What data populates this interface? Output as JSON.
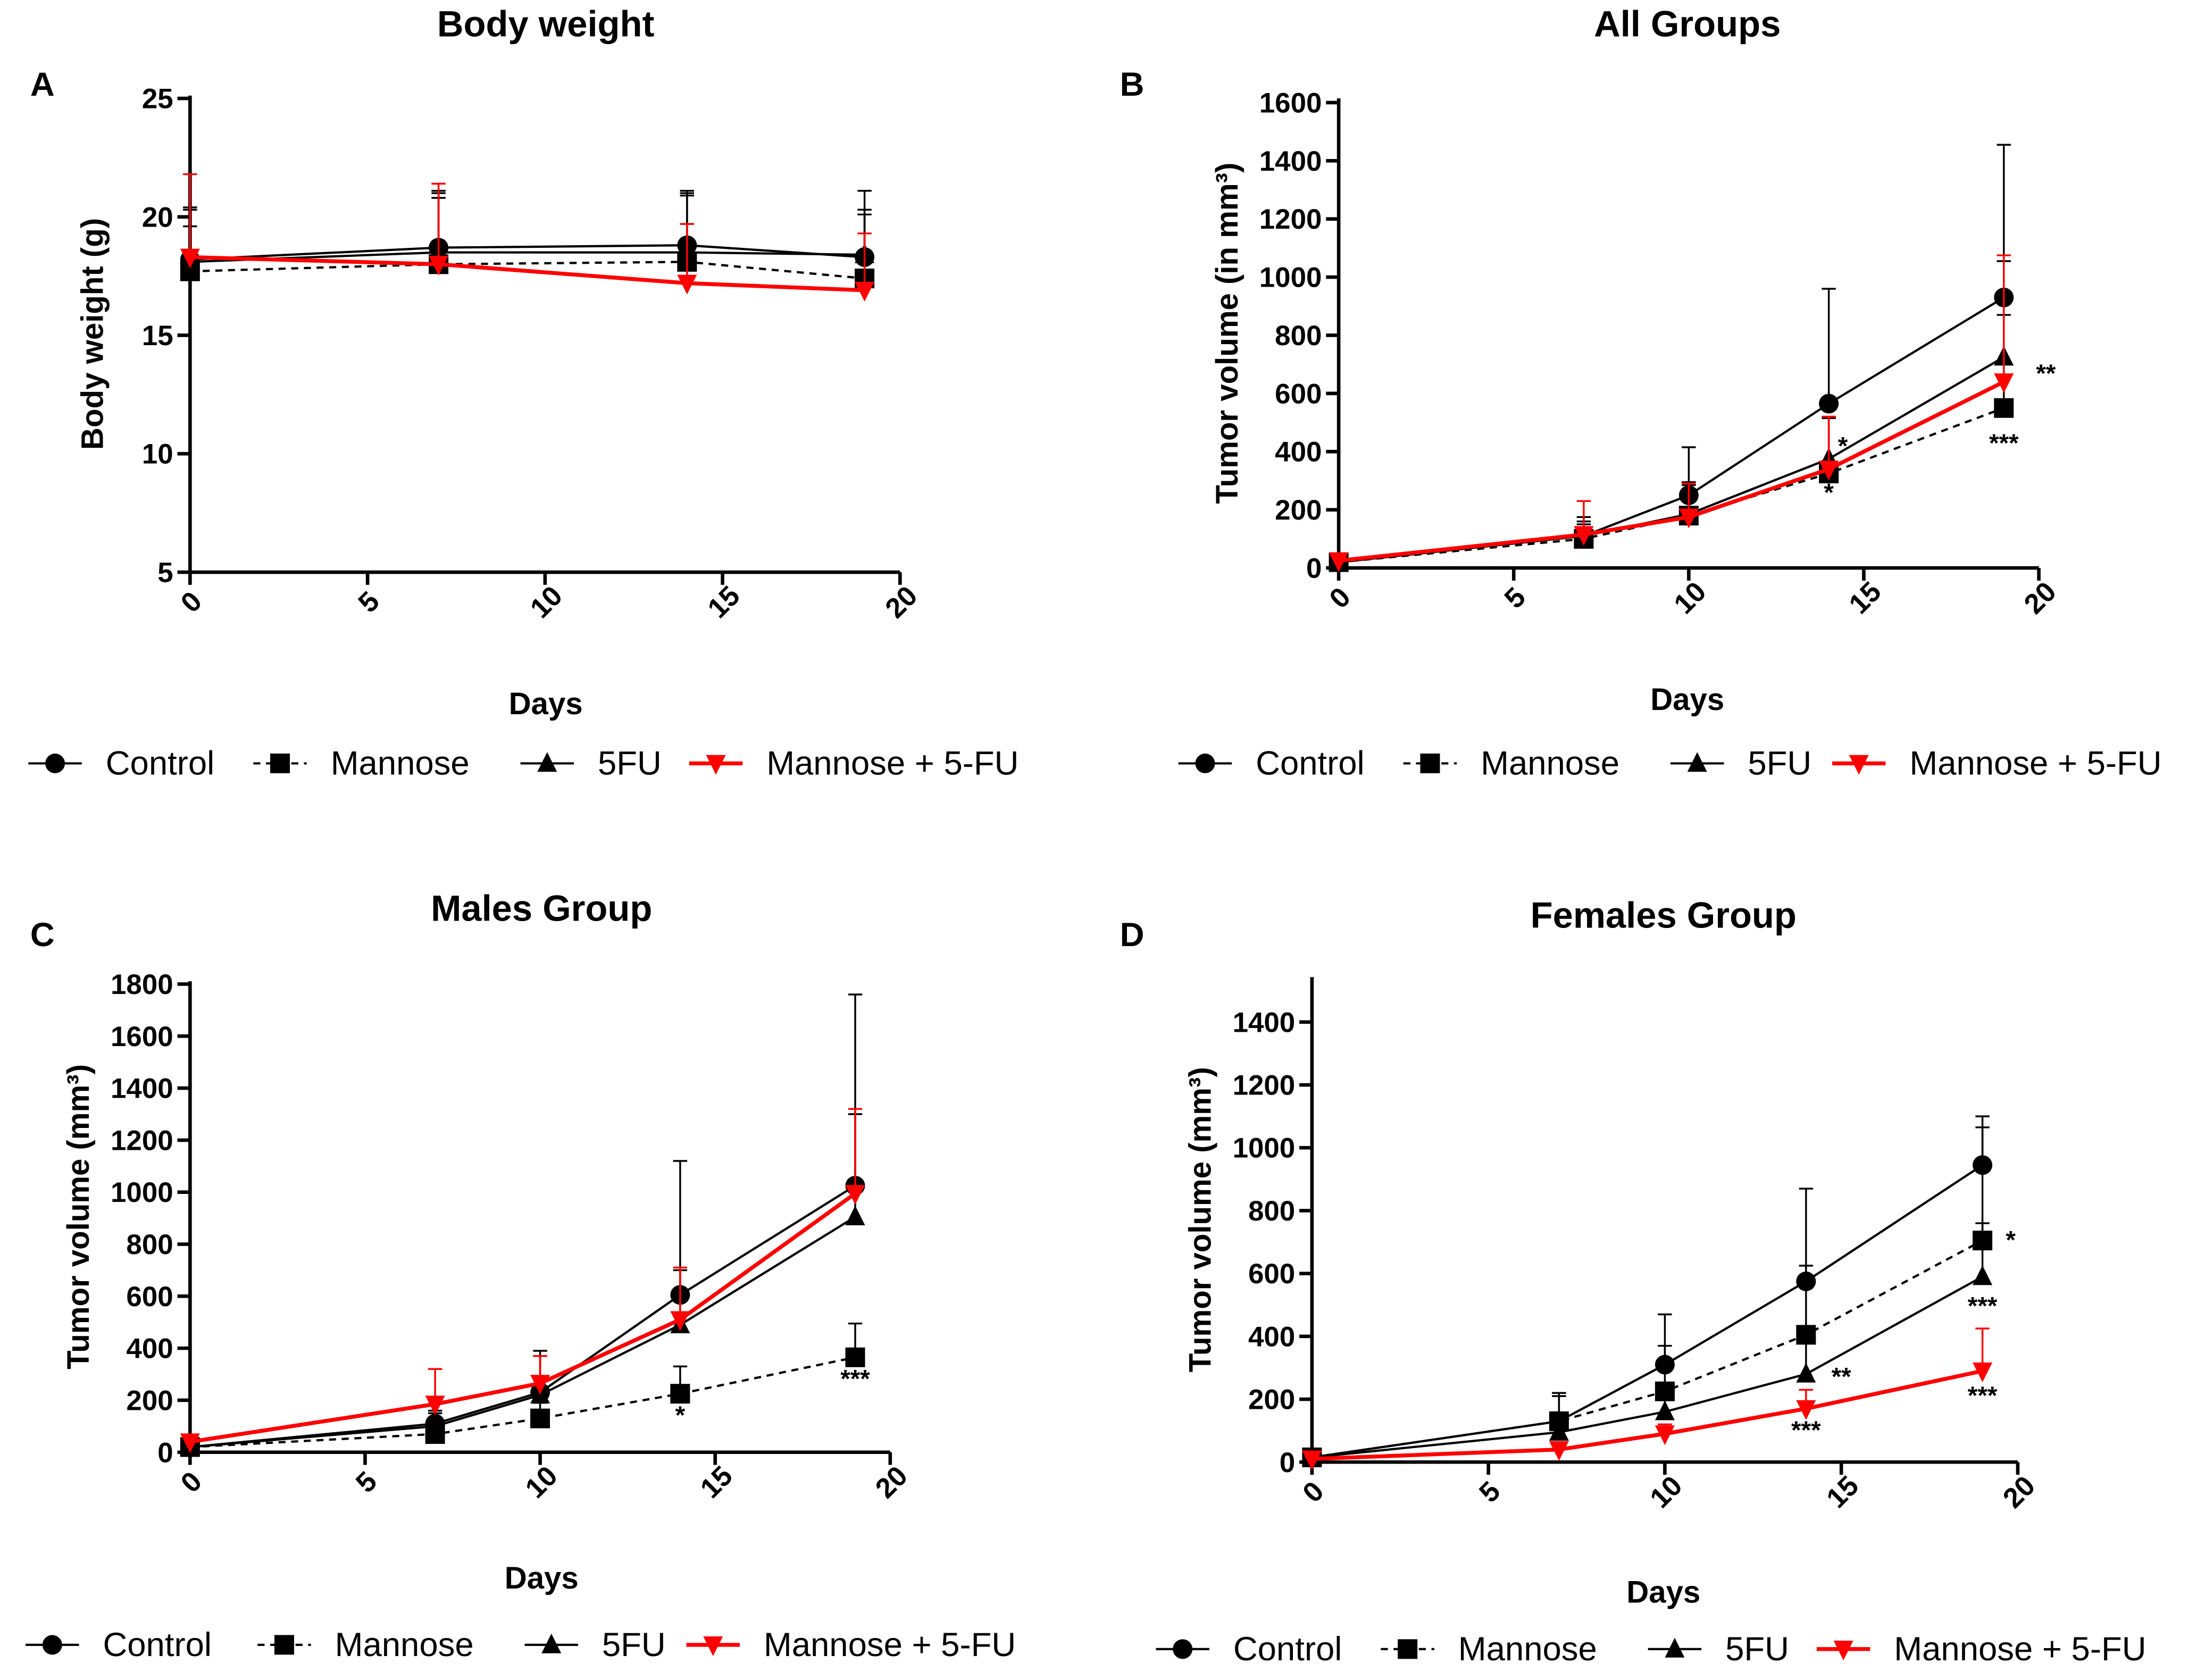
{
  "colors": {
    "black": "#000000",
    "red": "#ff0000"
  },
  "legend": [
    "Control",
    "Mannose",
    "5FU",
    "Mannose + 5-FU"
  ],
  "chart_data": [
    {
      "type": "line",
      "panel": "A",
      "title": "Body weight",
      "xlabel": "Days",
      "ylabel": "Body weight (g)",
      "xlim": [
        0,
        20
      ],
      "ylim": [
        5,
        25
      ],
      "xticks": [
        0,
        5,
        10,
        15,
        20
      ],
      "yticks": [
        5,
        10,
        15,
        20,
        25
      ],
      "x": [
        0,
        7,
        14,
        19
      ],
      "series": [
        {
          "name": "Control",
          "marker": "circle",
          "color": "#000000",
          "dash": false,
          "values": [
            18.2,
            18.7,
            18.8,
            18.3
          ],
          "upper": [
            20.3,
            21.1,
            21.1,
            21.1
          ]
        },
        {
          "name": "Mannose",
          "marker": "square",
          "color": "#000000",
          "dash": true,
          "values": [
            17.7,
            18.0,
            18.1,
            17.4
          ],
          "upper": [
            19.6,
            20.8,
            20.9,
            20.1
          ]
        },
        {
          "name": "5FU",
          "marker": "triangle",
          "color": "#000000",
          "dash": false,
          "values": [
            18.1,
            18.5,
            18.5,
            18.4
          ],
          "upper": [
            20.4,
            21.0,
            21.0,
            20.3
          ]
        },
        {
          "name": "Mannose + 5-FU",
          "marker": "triangle-down",
          "color": "#ff0000",
          "dash": false,
          "values": [
            18.3,
            18.0,
            17.2,
            16.9
          ],
          "upper": [
            21.8,
            21.4,
            19.7,
            19.3
          ]
        }
      ],
      "annotations": []
    },
    {
      "type": "line",
      "panel": "B",
      "title": "All Groups",
      "xlabel": "Days",
      "ylabel": "Tumor volume (in  mm³)",
      "xlim": [
        0,
        20
      ],
      "ylim": [
        0,
        1600
      ],
      "xticks": [
        0,
        5,
        10,
        15,
        20
      ],
      "yticks": [
        0,
        200,
        400,
        600,
        800,
        1000,
        1200,
        1400,
        1600
      ],
      "x": [
        0,
        7,
        10,
        14,
        19
      ],
      "series": [
        {
          "name": "Control",
          "marker": "circle",
          "color": "#000000",
          "dash": false,
          "values": [
            20,
            110,
            250,
            565,
            930
          ],
          "upper": [
            30,
            175,
            415,
            960,
            1455
          ]
        },
        {
          "name": "Mannose",
          "marker": "square",
          "color": "#000000",
          "dash": true,
          "values": [
            20,
            100,
            180,
            325,
            550
          ],
          "upper": [
            30,
            150,
            285,
            515,
            1055
          ]
        },
        {
          "name": "5FU",
          "marker": "triangle",
          "color": "#000000",
          "dash": false,
          "values": [
            20,
            110,
            185,
            375,
            725
          ],
          "upper": [
            30,
            160,
            295,
            520,
            870
          ]
        },
        {
          "name": "Mannose + 5-FU",
          "marker": "triangle-down",
          "color": "#ff0000",
          "dash": false,
          "values": [
            25,
            115,
            175,
            340,
            640
          ],
          "upper": [
            40,
            230,
            290,
            520,
            1075
          ]
        }
      ],
      "annotations": [
        {
          "x": 14.4,
          "y": 390,
          "text": "*"
        },
        {
          "x": 14,
          "y": 230,
          "text": "*"
        },
        {
          "x": 20.2,
          "y": 640,
          "text": "**"
        },
        {
          "x": 19,
          "y": 400,
          "text": "***"
        }
      ]
    },
    {
      "type": "line",
      "panel": "C",
      "title": "Males Group",
      "xlabel": "Days",
      "ylabel": "Tumor volume (mm³)",
      "xlim": [
        0,
        20
      ],
      "ylim": [
        0,
        1800
      ],
      "xticks": [
        0,
        5,
        10,
        15,
        20
      ],
      "yticks": [
        0,
        200,
        400,
        600,
        800,
        1000,
        1200,
        1400,
        1600,
        1800
      ],
      "x": [
        0,
        7,
        10,
        14,
        19
      ],
      "series": [
        {
          "name": "Control",
          "marker": "circle",
          "color": "#000000",
          "dash": false,
          "values": [
            20,
            110,
            230,
            605,
            1025
          ],
          "upper": [
            35,
            160,
            390,
            1120,
            1760
          ]
        },
        {
          "name": "Mannose",
          "marker": "square",
          "color": "#000000",
          "dash": true,
          "values": [
            20,
            70,
            130,
            225,
            365
          ],
          "upper": [
            30,
            110,
            190,
            330,
            495
          ]
        },
        {
          "name": "5FU",
          "marker": "triangle",
          "color": "#000000",
          "dash": false,
          "values": [
            20,
            100,
            220,
            490,
            905
          ],
          "upper": [
            30,
            150,
            370,
            700,
            1300
          ]
        },
        {
          "name": "Mannose + 5-FU",
          "marker": "triangle-down",
          "color": "#ff0000",
          "dash": false,
          "values": [
            40,
            185,
            265,
            510,
            995
          ],
          "upper": [
            55,
            320,
            370,
            710,
            1320
          ]
        }
      ],
      "annotations": [
        {
          "x": 14,
          "y": 110,
          "text": "*"
        },
        {
          "x": 19,
          "y": 250,
          "text": "***"
        }
      ]
    },
    {
      "type": "line",
      "panel": "D",
      "title": "Females Group",
      "xlabel": "Days",
      "ylabel": "Tumor volume (mm³)",
      "xlim": [
        0,
        20
      ],
      "ylim": [
        0,
        1400
      ],
      "xticks": [
        0,
        5,
        10,
        15,
        20
      ],
      "yticks": [
        0,
        200,
        400,
        600,
        800,
        1000,
        1200,
        1400
      ],
      "x": [
        0,
        7,
        10,
        14,
        19
      ],
      "series": [
        {
          "name": "Control",
          "marker": "circle",
          "color": "#000000",
          "dash": false,
          "values": [
            15,
            130,
            310,
            575,
            945
          ],
          "upper": [
            25,
            220,
            470,
            870,
            1100
          ]
        },
        {
          "name": "Mannose",
          "marker": "square",
          "color": "#000000",
          "dash": true,
          "values": [
            15,
            130,
            225,
            405,
            705
          ],
          "upper": [
            25,
            210,
            370,
            625,
            1065
          ]
        },
        {
          "name": "5FU",
          "marker": "triangle",
          "color": "#000000",
          "dash": false,
          "values": [
            15,
            95,
            160,
            280,
            590
          ],
          "upper": [
            25,
            150,
            230,
            400,
            760
          ]
        },
        {
          "name": "Mannose + 5-FU",
          "marker": "triangle-down",
          "color": "#ff0000",
          "dash": false,
          "values": [
            10,
            40,
            90,
            170,
            290
          ],
          "upper": [
            15,
            60,
            120,
            230,
            425
          ]
        }
      ],
      "annotations": [
        {
          "x": 19.8,
          "y": 680,
          "text": "*"
        },
        {
          "x": 19,
          "y": 470,
          "text": "***"
        },
        {
          "x": 15,
          "y": 245,
          "text": "**"
        },
        {
          "x": 14,
          "y": 75,
          "text": "***"
        },
        {
          "x": 19,
          "y": 185,
          "text": "***"
        }
      ]
    }
  ]
}
